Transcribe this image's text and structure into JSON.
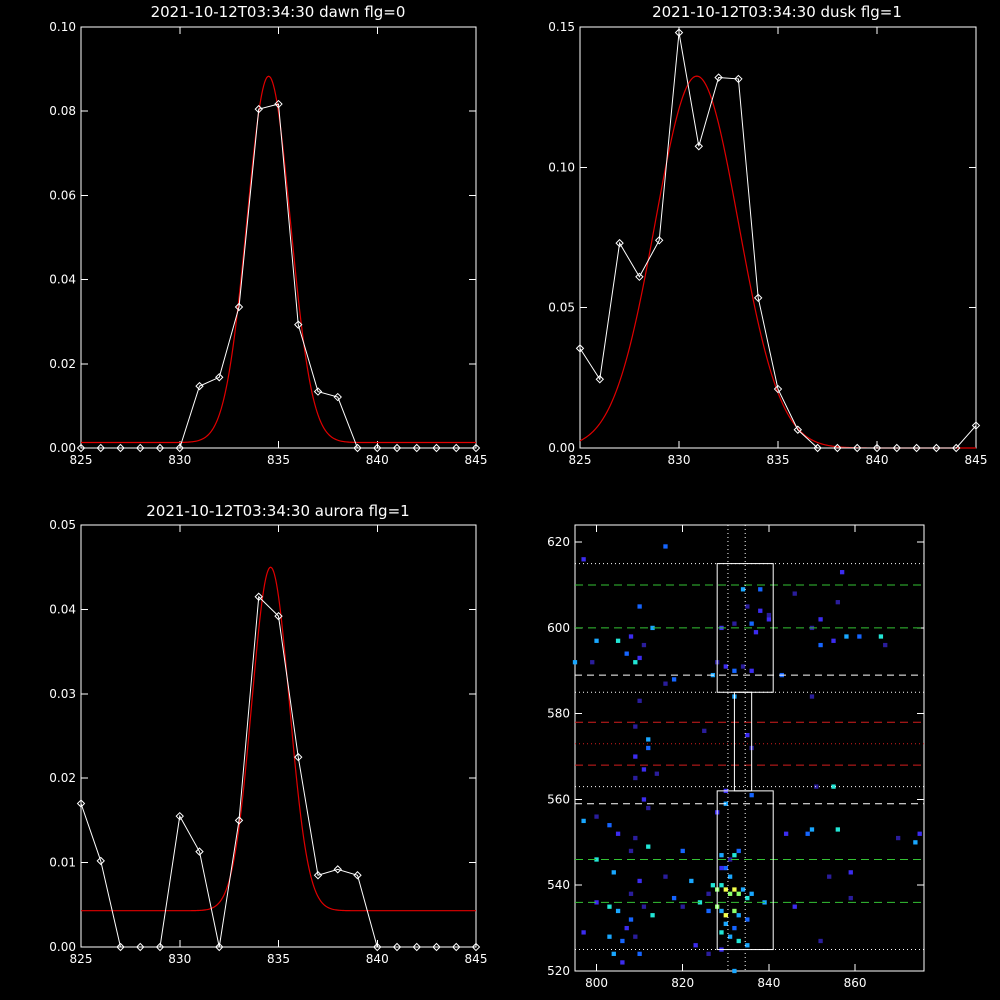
{
  "colors": {
    "background": "#000000",
    "axes": "#ffffff",
    "data_line": "#ffffff",
    "fit_line": "#e00000",
    "green_dash": "#34c234",
    "white_dash": "#ffffff",
    "red_dash": "#d21e1e",
    "red_dot": "#d21e1e"
  },
  "chart_data": [
    {
      "type": "line",
      "title": "2021-10-12T03:34:30 dawn flg=0",
      "xlim": [
        825,
        845
      ],
      "ylim": [
        0,
        0.1
      ],
      "x_ticks": [
        "825",
        "830",
        "835",
        "840",
        "845"
      ],
      "y_ticks": [
        "0.00",
        "0.02",
        "0.04",
        "0.06",
        "0.08",
        "0.10"
      ],
      "series": [
        {
          "x": [
            825,
            826,
            827,
            828,
            829,
            830,
            831,
            832,
            833,
            834,
            835,
            836,
            837,
            838,
            839,
            840,
            841,
            842,
            843,
            844,
            845
          ],
          "y": [
            0,
            0,
            0,
            0,
            0,
            0,
            0.0147,
            0.0168,
            0.0335,
            0.0805,
            0.0817,
            0.0293,
            0.0134,
            0.0121,
            0,
            0,
            0,
            0,
            0,
            0,
            0
          ]
        },
        {
          "fit": {
            "amplitude": 0.087,
            "center": 834.5,
            "sigma": 1.1,
            "offset": 0.0013
          }
        }
      ]
    },
    {
      "type": "line",
      "title": "2021-10-12T03:34:30 dusk flg=1",
      "xlim": [
        825,
        845
      ],
      "ylim": [
        0,
        0.15
      ],
      "x_ticks": [
        "825",
        "830",
        "835",
        "840",
        "845"
      ],
      "y_ticks": [
        "0.00",
        "0.05",
        "0.10",
        "0.15"
      ],
      "series": [
        {
          "x": [
            825,
            826,
            827,
            828,
            829,
            830,
            831,
            832,
            833,
            834,
            835,
            836,
            837,
            838,
            839,
            840,
            841,
            842,
            843,
            844,
            845
          ],
          "y": [
            0.0355,
            0.0245,
            0.073,
            0.061,
            0.074,
            0.148,
            0.1075,
            0.132,
            0.1315,
            0.0535,
            0.021,
            0.0065,
            0,
            0,
            0,
            0,
            0,
            0,
            0,
            0,
            0.008
          ]
        },
        {
          "fit": {
            "amplitude": 0.1325,
            "center": 830.9,
            "sigma": 2.1,
            "offset": 0.0
          }
        }
      ]
    },
    {
      "type": "line",
      "title": "2021-10-12T03:34:30 aurora flg=1",
      "xlim": [
        825,
        845
      ],
      "ylim": [
        0,
        0.05
      ],
      "x_ticks": [
        "825",
        "830",
        "835",
        "840",
        "845"
      ],
      "y_ticks": [
        "0.00",
        "0.01",
        "0.02",
        "0.03",
        "0.04",
        "0.05"
      ],
      "series": [
        {
          "x": [
            825,
            826,
            827,
            828,
            829,
            830,
            831,
            832,
            833,
            834,
            835,
            836,
            837,
            838,
            839,
            840,
            841,
            842,
            843,
            844,
            845
          ],
          "y": [
            0.017,
            0.0102,
            0,
            0,
            0,
            0.0155,
            0.0113,
            0,
            0.015,
            0.0415,
            0.0392,
            0.0225,
            0.0085,
            0.0092,
            0.0085,
            0,
            0,
            0,
            0,
            0,
            0
          ]
        },
        {
          "fit": {
            "amplitude": 0.0407,
            "center": 834.6,
            "sigma": 0.95,
            "offset": 0.0043
          }
        }
      ]
    },
    {
      "type": "heatmap",
      "title": "",
      "xlim": [
        795,
        876
      ],
      "ylim": [
        520,
        624
      ],
      "x_ticks": [
        "800",
        "820",
        "840",
        "860"
      ],
      "y_ticks": [
        "520",
        "540",
        "560",
        "580",
        "600",
        "620"
      ],
      "boxes": [
        {
          "x": [
            828,
            841
          ],
          "y": [
            585,
            615
          ]
        },
        {
          "x": [
            828,
            841
          ],
          "y": [
            525,
            562
          ]
        },
        {
          "x": [
            832,
            836
          ],
          "y": [
            562,
            585
          ]
        }
      ],
      "h_lines": [
        {
          "y": 615,
          "style": "white-dot"
        },
        {
          "y": 610,
          "style": "green-dash"
        },
        {
          "y": 600,
          "style": "green-dash"
        },
        {
          "y": 589,
          "style": "white-dash"
        },
        {
          "y": 585,
          "style": "white-dot"
        },
        {
          "y": 578,
          "style": "red-dash"
        },
        {
          "y": 573,
          "style": "red-dot"
        },
        {
          "y": 568,
          "style": "red-dash"
        },
        {
          "y": 563,
          "style": "white-dot"
        },
        {
          "y": 559,
          "style": "white-dash"
        },
        {
          "y": 546,
          "style": "green-dash"
        },
        {
          "y": 536,
          "style": "green-dash"
        },
        {
          "y": 525,
          "style": "white-dot"
        }
      ],
      "v_lines": [
        {
          "x": 830.5,
          "style": "white-dot"
        },
        {
          "x": 834.5,
          "style": "white-dot"
        }
      ],
      "pixels": [
        [
          797,
          616,
          1
        ],
        [
          816,
          619,
          2
        ],
        [
          834,
          609,
          3
        ],
        [
          838,
          609,
          2
        ],
        [
          846,
          608,
          0
        ],
        [
          856,
          606,
          0
        ],
        [
          857,
          613,
          1
        ],
        [
          810,
          605,
          2
        ],
        [
          835,
          605,
          0
        ],
        [
          838,
          604,
          1
        ],
        [
          840,
          603,
          0
        ],
        [
          836,
          601,
          2
        ],
        [
          813,
          600,
          3
        ],
        [
          832,
          601,
          0
        ],
        [
          840,
          602,
          1
        ],
        [
          850,
          600,
          0
        ],
        [
          852,
          602,
          1
        ],
        [
          829,
          600,
          1
        ],
        [
          837,
          599,
          1
        ],
        [
          855,
          597,
          1
        ],
        [
          858,
          598,
          3
        ],
        [
          861,
          598,
          2
        ],
        [
          866,
          598,
          4
        ],
        [
          867,
          596,
          0
        ],
        [
          805,
          597,
          4
        ],
        [
          800,
          597,
          3
        ],
        [
          808,
          598,
          1
        ],
        [
          852,
          596,
          2
        ],
        [
          811,
          596,
          0
        ],
        [
          807,
          594,
          2
        ],
        [
          810,
          593,
          1
        ],
        [
          809,
          592,
          4
        ],
        [
          795,
          592,
          3
        ],
        [
          799,
          592,
          0
        ],
        [
          828,
          592,
          0
        ],
        [
          830,
          591,
          1
        ],
        [
          832,
          590,
          2
        ],
        [
          834,
          591,
          0
        ],
        [
          836,
          590,
          1
        ],
        [
          827,
          589,
          3
        ],
        [
          843,
          589,
          2
        ],
        [
          818,
          588,
          2
        ],
        [
          816,
          587,
          0
        ],
        [
          810,
          583,
          0
        ],
        [
          832,
          584,
          3
        ],
        [
          850,
          584,
          0
        ],
        [
          809,
          577,
          0
        ],
        [
          825,
          576,
          0
        ],
        [
          835,
          575,
          1
        ],
        [
          836,
          572,
          0
        ],
        [
          812,
          574,
          3
        ],
        [
          812,
          572,
          2
        ],
        [
          809,
          570,
          1
        ],
        [
          811,
          567,
          1
        ],
        [
          814,
          566,
          0
        ],
        [
          809,
          565,
          0
        ],
        [
          830,
          562,
          1
        ],
        [
          836,
          561,
          2
        ],
        [
          851,
          563,
          0
        ],
        [
          855,
          563,
          4
        ],
        [
          811,
          560,
          1
        ],
        [
          812,
          558,
          0
        ],
        [
          830,
          559,
          3
        ],
        [
          828,
          557,
          1
        ],
        [
          797,
          555,
          3
        ],
        [
          800,
          556,
          0
        ],
        [
          803,
          554,
          2
        ],
        [
          805,
          552,
          1
        ],
        [
          809,
          551,
          0
        ],
        [
          812,
          549,
          4
        ],
        [
          820,
          548,
          2
        ],
        [
          829,
          547,
          3
        ],
        [
          831,
          546,
          0
        ],
        [
          832,
          547,
          4
        ],
        [
          833,
          548,
          2
        ],
        [
          829,
          544,
          1
        ],
        [
          830,
          544,
          2
        ],
        [
          831,
          542,
          3
        ],
        [
          844,
          552,
          1
        ],
        [
          849,
          552,
          2
        ],
        [
          850,
          553,
          3
        ],
        [
          856,
          553,
          4
        ],
        [
          870,
          551,
          0
        ],
        [
          875,
          552,
          1
        ],
        [
          874,
          550,
          3
        ],
        [
          808,
          548,
          0
        ],
        [
          800,
          546,
          4
        ],
        [
          804,
          543,
          3
        ],
        [
          810,
          541,
          1
        ],
        [
          816,
          542,
          0
        ],
        [
          822,
          541,
          3
        ],
        [
          827,
          540,
          4
        ],
        [
          828,
          539,
          5
        ],
        [
          829,
          540,
          4
        ],
        [
          830,
          539,
          6
        ],
        [
          831,
          538,
          5
        ],
        [
          832,
          539,
          6
        ],
        [
          833,
          538,
          5
        ],
        [
          834,
          539,
          3
        ],
        [
          835,
          537,
          4
        ],
        [
          836,
          538,
          3
        ],
        [
          839,
          536,
          3
        ],
        [
          826,
          538,
          0
        ],
        [
          824,
          536,
          4
        ],
        [
          826,
          534,
          2
        ],
        [
          828,
          535,
          5
        ],
        [
          829,
          534,
          3
        ],
        [
          830,
          533,
          6
        ],
        [
          832,
          534,
          5
        ],
        [
          833,
          533,
          3
        ],
        [
          835,
          532,
          2
        ],
        [
          830,
          531,
          3
        ],
        [
          832,
          530,
          2
        ],
        [
          829,
          529,
          4
        ],
        [
          831,
          528,
          3
        ],
        [
          833,
          527,
          4
        ],
        [
          829,
          525,
          1
        ],
        [
          835,
          526,
          3
        ],
        [
          826,
          524,
          0
        ],
        [
          823,
          526,
          1
        ],
        [
          808,
          538,
          0
        ],
        [
          800,
          536,
          1
        ],
        [
          803,
          535,
          4
        ],
        [
          805,
          534,
          3
        ],
        [
          808,
          532,
          2
        ],
        [
          811,
          535,
          0
        ],
        [
          813,
          533,
          4
        ],
        [
          807,
          530,
          1
        ],
        [
          803,
          528,
          3
        ],
        [
          806,
          527,
          2
        ],
        [
          809,
          528,
          0
        ],
        [
          804,
          524,
          3
        ],
        [
          806,
          522,
          1
        ],
        [
          852,
          527,
          0
        ],
        [
          832,
          520,
          3
        ],
        [
          818,
          537,
          2
        ],
        [
          820,
          535,
          0
        ],
        [
          846,
          535,
          1
        ],
        [
          854,
          542,
          0
        ],
        [
          859,
          537,
          0
        ],
        [
          859,
          543,
          1
        ],
        [
          797,
          529,
          1
        ],
        [
          810,
          524,
          2
        ]
      ]
    }
  ]
}
